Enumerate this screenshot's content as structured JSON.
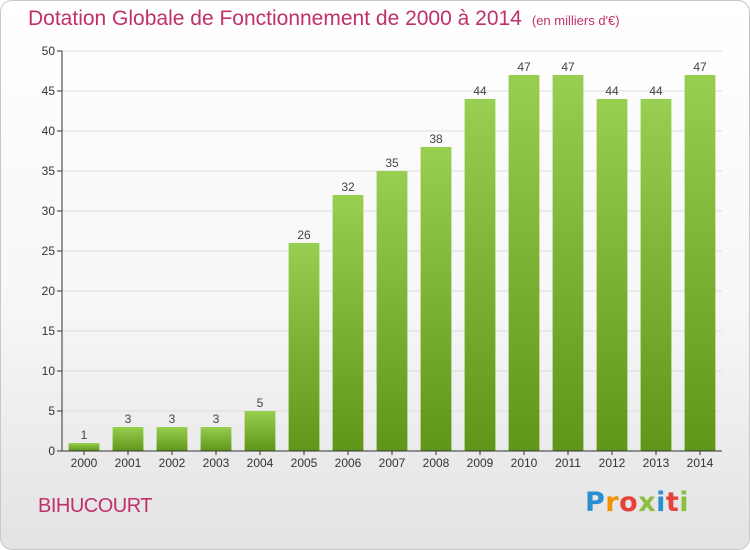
{
  "chart_data": {
    "type": "bar",
    "title": "Dotation Globale de Fonctionnement de 2000 à 2014",
    "subtitle": "(en milliers d'€)",
    "categories": [
      "2000",
      "2001",
      "2002",
      "2003",
      "2004",
      "2005",
      "2006",
      "2007",
      "2008",
      "2009",
      "2010",
      "2011",
      "2012",
      "2013",
      "2014"
    ],
    "values": [
      1,
      3,
      3,
      3,
      5,
      26,
      32,
      35,
      38,
      44,
      47,
      47,
      44,
      44,
      47
    ],
    "xlabel": "",
    "ylabel": "",
    "ylim": [
      0,
      50
    ],
    "yticks": [
      0,
      5,
      10,
      15,
      20,
      25,
      30,
      35,
      40,
      45,
      50
    ],
    "grid": true,
    "bar_color": "#7cbb2e",
    "bar_color_light": "#98cf50",
    "bar_color_dark": "#5f9618",
    "value_label_color": "#444444"
  },
  "footer": {
    "commune": "BIHUCOURT",
    "brand_letters": [
      "P",
      "r",
      "o",
      "x",
      "i",
      "t",
      "i"
    ]
  },
  "colors": {
    "title": "#c0306a",
    "axis": "#333333",
    "grid": "#dddddd"
  }
}
